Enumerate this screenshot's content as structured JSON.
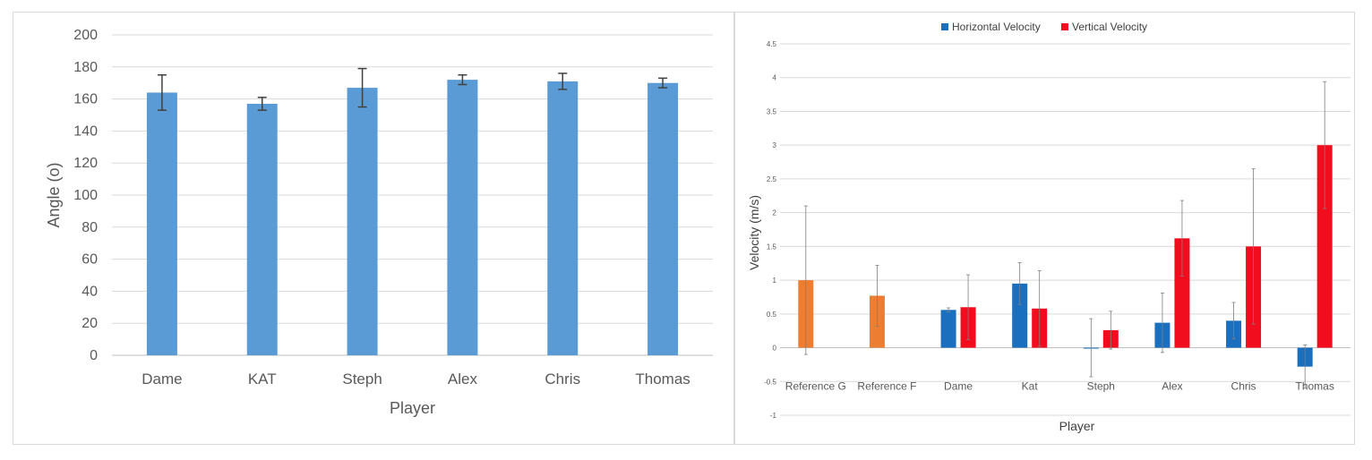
{
  "colors": {
    "left_bar": "#5b9bd5",
    "horizontal": "#1a6fbf",
    "vertical": "#f20d1e",
    "reference": "#ed7d31",
    "error_bar_left": "#404040",
    "error_bar_right": "#7f7f7f"
  },
  "chart_data": [
    {
      "type": "bar",
      "categories": [
        "Dame",
        "KAT",
        "Steph",
        "Alex",
        "Chris",
        "Thomas"
      ],
      "values": [
        164,
        157,
        167,
        172,
        171,
        170
      ],
      "errors": [
        11,
        4,
        12,
        3,
        5,
        3
      ],
      "xlabel": "Player",
      "ylabel": "Angle (o)",
      "ylim": [
        0,
        200
      ],
      "yticks": [
        "0",
        "20",
        "40",
        "60",
        "80",
        "100",
        "120",
        "140",
        "160",
        "180",
        "200"
      ],
      "grid": true,
      "legend": "none"
    },
    {
      "type": "bar",
      "categories": [
        "Reference G",
        "Reference F",
        "Dame",
        "Kat",
        "Steph",
        "Alex",
        "Chris",
        "Thomas"
      ],
      "series": [
        {
          "name": "Horizontal Velocity",
          "values": [
            1.0,
            0.77,
            0.56,
            0.95,
            0.0,
            0.37,
            0.4,
            -0.28
          ],
          "errors": [
            1.1,
            0.45,
            0.03,
            0.31,
            0.43,
            0.44,
            0.27,
            0.32
          ]
        },
        {
          "name": "Vertical Velocity",
          "values": [
            null,
            null,
            0.6,
            0.58,
            0.26,
            1.62,
            1.5,
            3.0
          ],
          "errors": [
            null,
            null,
            0.48,
            0.56,
            0.28,
            0.56,
            1.15,
            0.94
          ]
        }
      ],
      "reference_categories": [
        "Reference G",
        "Reference F"
      ],
      "xlabel": "Player",
      "ylabel": "Velocity (m/s)",
      "ylim": [
        -1,
        4.5
      ],
      "yticks": [
        "-1",
        "-0.5",
        "0",
        "0.5",
        "1",
        "1.5",
        "2",
        "2.5",
        "3",
        "3.5",
        "4",
        "4.5"
      ],
      "grid": true,
      "legend": "top-center"
    }
  ]
}
